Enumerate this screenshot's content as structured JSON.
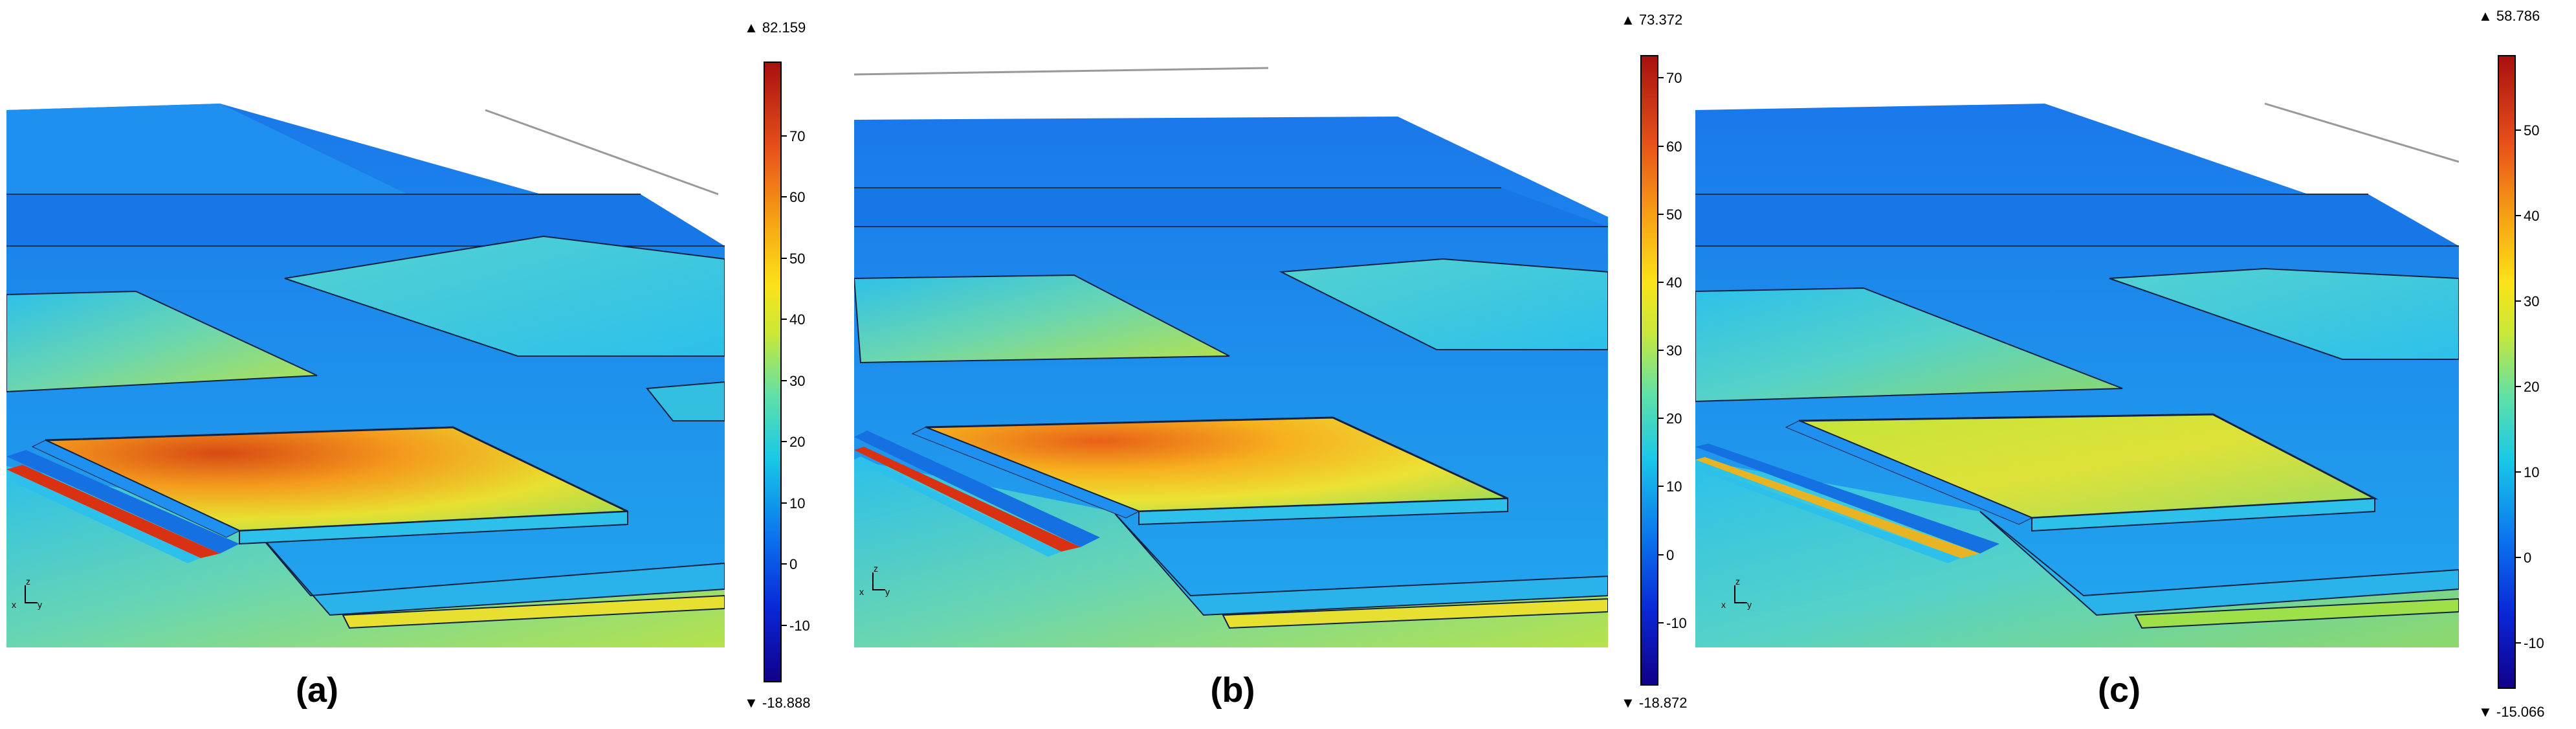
{
  "panels": [
    {
      "caption": "(a)",
      "colorbar": {
        "max_label": "▲ 82.159",
        "min_label": "▼ -18.888",
        "ticks": [
          "70",
          "60",
          "50",
          "40",
          "30",
          "20",
          "10",
          "0",
          "-10"
        ],
        "max": 82.159,
        "min": -18.888
      }
    },
    {
      "caption": "(b)",
      "colorbar": {
        "max_label": "▲ 73.372",
        "min_label": "▼ -18.872",
        "ticks": [
          "70",
          "60",
          "50",
          "40",
          "30",
          "20",
          "10",
          "0",
          "-10"
        ],
        "max": 73.372,
        "min": -18.872
      }
    },
    {
      "caption": "(c)",
      "colorbar": {
        "max_label": "▲ 58.786",
        "min_label": "▼ -15.066",
        "ticks": [
          "50",
          "40",
          "30",
          "20",
          "10",
          "0",
          "-10"
        ],
        "max": 58.786,
        "min": -15.066
      }
    }
  ],
  "axis_triad": {
    "z": "z",
    "x": "x",
    "y": "y"
  },
  "colors": {
    "deep_blue": "#1660e0",
    "blue": "#1f8ff0",
    "cyan": "#2cc0ea",
    "green_yellow": "#9ee04a",
    "yellow": "#f2e22a",
    "orange": "#f49a1c",
    "red": "#d83212"
  }
}
